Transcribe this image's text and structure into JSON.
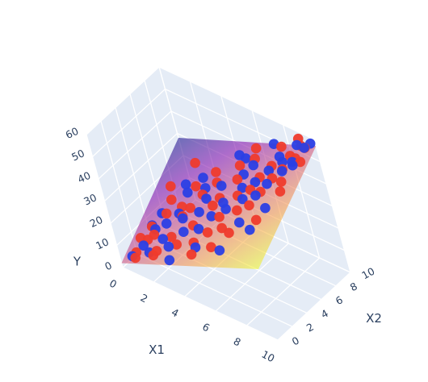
{
  "chart_data": {
    "type": "scatter3d",
    "axes": {
      "x": {
        "title": "X1",
        "range": [
          0,
          10
        ],
        "ticks": [
          "0",
          "2",
          "4",
          "6",
          "8",
          "10"
        ]
      },
      "y": {
        "title": "X2",
        "range": [
          0,
          10
        ],
        "ticks": [
          "0",
          "2",
          "4",
          "6",
          "8",
          "10"
        ]
      },
      "z": {
        "title": "Y",
        "range": [
          0,
          60
        ],
        "ticks": [
          "0",
          "10",
          "20",
          "30",
          "40",
          "50",
          "60"
        ]
      }
    },
    "background": "#e5ecf6",
    "grid": true,
    "regression_plane": {
      "z_at_corners": {
        "x0_y0": 2,
        "x10_y0": 32,
        "x0_y10": 28,
        "x10_y10": 57
      },
      "colorscale": [
        "#0d0887",
        "#7e03a8",
        "#cc4778",
        "#f89540",
        "#f0f921"
      ]
    },
    "series": [
      {
        "color": "#ef3b2c",
        "points": [
          [
            0.5,
            1.2,
            4.8
          ],
          [
            0.8,
            0.5,
            5.5
          ],
          [
            1.2,
            1.8,
            11
          ],
          [
            1.5,
            2.2,
            13
          ],
          [
            0.9,
            3.1,
            12
          ],
          [
            2.1,
            1.1,
            11
          ],
          [
            1.7,
            3.9,
            18
          ],
          [
            2.6,
            2.4,
            15
          ],
          [
            2.9,
            3.8,
            21
          ],
          [
            3.3,
            1.7,
            16
          ],
          [
            3.1,
            4.6,
            23
          ],
          [
            3.9,
            3.2,
            22
          ],
          [
            4.2,
            2.3,
            18
          ],
          [
            4.6,
            4.9,
            28
          ],
          [
            5.1,
            2.8,
            24
          ],
          [
            4.8,
            5.6,
            30
          ],
          [
            5.4,
            4.1,
            28
          ],
          [
            5.9,
            3.3,
            27
          ],
          [
            6.1,
            5.7,
            35
          ],
          [
            6.5,
            4.6,
            33
          ],
          [
            5.6,
            6.9,
            37
          ],
          [
            6.9,
            6.1,
            39
          ],
          [
            7.3,
            4.9,
            37
          ],
          [
            7.1,
            7.2,
            42
          ],
          [
            7.8,
            5.8,
            42
          ],
          [
            8.2,
            6.9,
            46
          ],
          [
            7.6,
            8.1,
            46
          ],
          [
            8.6,
            7.7,
            49
          ],
          [
            9.0,
            6.6,
            48
          ],
          [
            8.7,
            8.8,
            52
          ],
          [
            9.3,
            8.4,
            54
          ],
          [
            9.6,
            9.3,
            57
          ],
          [
            9.1,
            9.7,
            55
          ],
          [
            9.8,
            8.1,
            55
          ],
          [
            6.3,
            8.4,
            44
          ],
          [
            4.1,
            6.8,
            31
          ],
          [
            3.4,
            5.9,
            26
          ],
          [
            2.3,
            4.9,
            20
          ],
          [
            1.4,
            5.3,
            19
          ],
          [
            5.2,
            8.2,
            38
          ],
          [
            6.8,
            2.6,
            30
          ],
          [
            8.4,
            3.6,
            38
          ],
          [
            3.7,
            7.6,
            32
          ],
          [
            2.6,
            6.6,
            25
          ],
          [
            1.9,
            0.9,
            9
          ],
          [
            4.4,
            1.4,
            16
          ],
          [
            7.9,
            9.3,
            52
          ],
          [
            9.4,
            5.6,
            48
          ],
          [
            0.3,
            2.4,
            7
          ],
          [
            1.0,
            6.2,
            21
          ],
          [
            6.0,
            9.3,
            45
          ],
          [
            8.9,
            9.9,
            57
          ],
          [
            5.8,
            1.7,
            23
          ],
          [
            2.0,
            8.1,
            29
          ]
        ]
      },
      {
        "color": "#2a3fe5",
        "points": [
          [
            0.4,
            0.8,
            4
          ],
          [
            0.9,
            1.6,
            8
          ],
          [
            1.6,
            1.0,
            9
          ],
          [
            1.3,
            2.8,
            13
          ],
          [
            2.2,
            2.0,
            14
          ],
          [
            1.9,
            3.3,
            16
          ],
          [
            2.8,
            1.5,
            14
          ],
          [
            2.5,
            4.1,
            20
          ],
          [
            3.4,
            2.7,
            19
          ],
          [
            3.0,
            3.6,
            21
          ],
          [
            3.8,
            4.4,
            24
          ],
          [
            4.3,
            3.1,
            22
          ],
          [
            4.0,
            5.3,
            28
          ],
          [
            4.9,
            4.0,
            27
          ],
          [
            5.3,
            5.1,
            31
          ],
          [
            4.7,
            6.3,
            33
          ],
          [
            5.7,
            4.6,
            31
          ],
          [
            6.2,
            6.3,
            37
          ],
          [
            5.9,
            7.3,
            39
          ],
          [
            6.6,
            5.4,
            36
          ],
          [
            7.0,
            6.7,
            41
          ],
          [
            6.4,
            7.9,
            43
          ],
          [
            7.5,
            5.6,
            40
          ],
          [
            7.7,
            7.5,
            46
          ],
          [
            8.1,
            6.3,
            45
          ],
          [
            8.4,
            8.2,
            50
          ],
          [
            7.9,
            8.8,
            49
          ],
          [
            8.8,
            7.3,
            50
          ],
          [
            9.2,
            8.1,
            53
          ],
          [
            9.5,
            7.6,
            54
          ],
          [
            9.7,
            9.1,
            58
          ],
          [
            9.0,
            9.4,
            56
          ],
          [
            3.6,
            6.1,
            29
          ],
          [
            2.4,
            5.8,
            24
          ],
          [
            6.9,
            3.9,
            31
          ],
          [
            8.5,
            4.8,
            40
          ],
          [
            5.5,
            8.6,
            41
          ],
          [
            1.1,
            4.3,
            15
          ],
          [
            2.9,
            7.2,
            28
          ],
          [
            4.5,
            1.9,
            18
          ],
          [
            7.2,
            9.6,
            50
          ],
          [
            9.9,
            9.6,
            59
          ],
          [
            0.6,
            3.6,
            10
          ],
          [
            1.7,
            6.9,
            22
          ],
          [
            8.2,
            2.9,
            35
          ],
          [
            6.7,
            1.2,
            26
          ],
          [
            3.2,
            0.6,
            12
          ],
          [
            4.7,
            9.2,
            38
          ]
        ]
      }
    ]
  }
}
